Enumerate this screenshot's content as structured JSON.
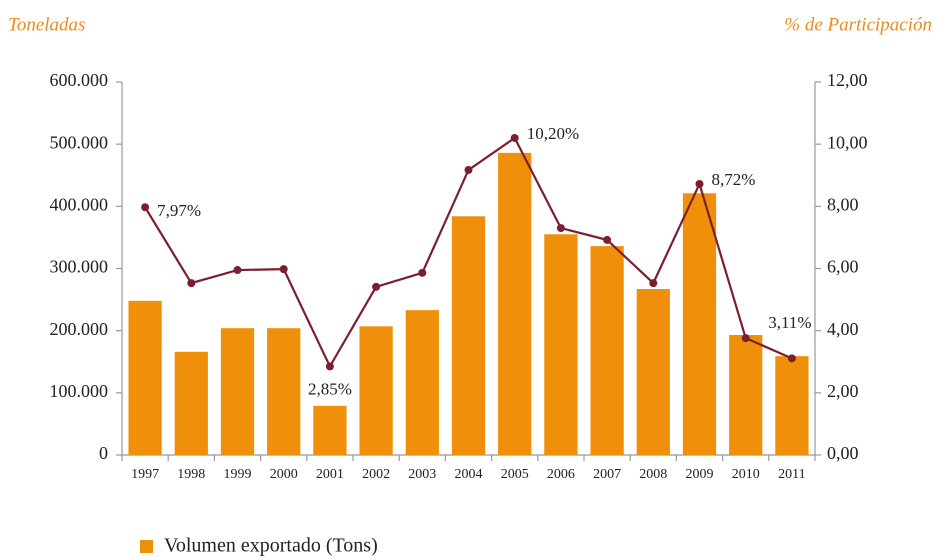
{
  "chart_data": {
    "type": "bar_line",
    "ylabel": "Toneladas",
    "y2label": "% de Participación",
    "categories": [
      "1997",
      "1998",
      "1999",
      "2000",
      "2001",
      "2002",
      "2003",
      "2004",
      "2005",
      "2006",
      "2007",
      "2008",
      "2009",
      "2010",
      "2011"
    ],
    "series": [
      {
        "name": "Volumen exportado (Tons)",
        "type": "bar",
        "color": "#f0900a",
        "values": [
          248000,
          166000,
          204000,
          204000,
          79000,
          207000,
          233000,
          384000,
          486000,
          355000,
          336000,
          267000,
          421000,
          193000,
          159000
        ]
      },
      {
        "type": "line",
        "axis": "y2",
        "color": "#7b1f2e",
        "values": [
          7.97,
          5.53,
          5.95,
          5.98,
          2.85,
          5.41,
          5.86,
          9.17,
          10.2,
          7.3,
          6.92,
          5.53,
          8.72,
          3.76,
          3.11
        ],
        "value_labels": [
          "7,97%",
          null,
          null,
          null,
          "2,85%",
          null,
          null,
          null,
          "10,20%",
          null,
          null,
          null,
          "8,72%",
          null,
          "3,11%"
        ]
      }
    ],
    "ylim": [
      0,
      600000
    ],
    "yticks": [
      {
        "value": 0,
        "label": "0"
      },
      {
        "value": 100000,
        "label": "100.000"
      },
      {
        "value": 200000,
        "label": "200.000"
      },
      {
        "value": 300000,
        "label": "300.000"
      },
      {
        "value": 400000,
        "label": "400.000"
      },
      {
        "value": 500000,
        "label": "500.000"
      },
      {
        "value": 600000,
        "label": "600.000"
      }
    ],
    "y2lim": [
      0,
      12
    ],
    "y2ticks": [
      {
        "value": 0,
        "label": "0,00"
      },
      {
        "value": 2,
        "label": "2,00"
      },
      {
        "value": 4,
        "label": "4,00"
      },
      {
        "value": 6,
        "label": "6,00"
      },
      {
        "value": 8,
        "label": "8,00"
      },
      {
        "value": 10,
        "label": "10,00"
      },
      {
        "value": 12,
        "label": "12,00"
      }
    ],
    "grid": false
  }
}
